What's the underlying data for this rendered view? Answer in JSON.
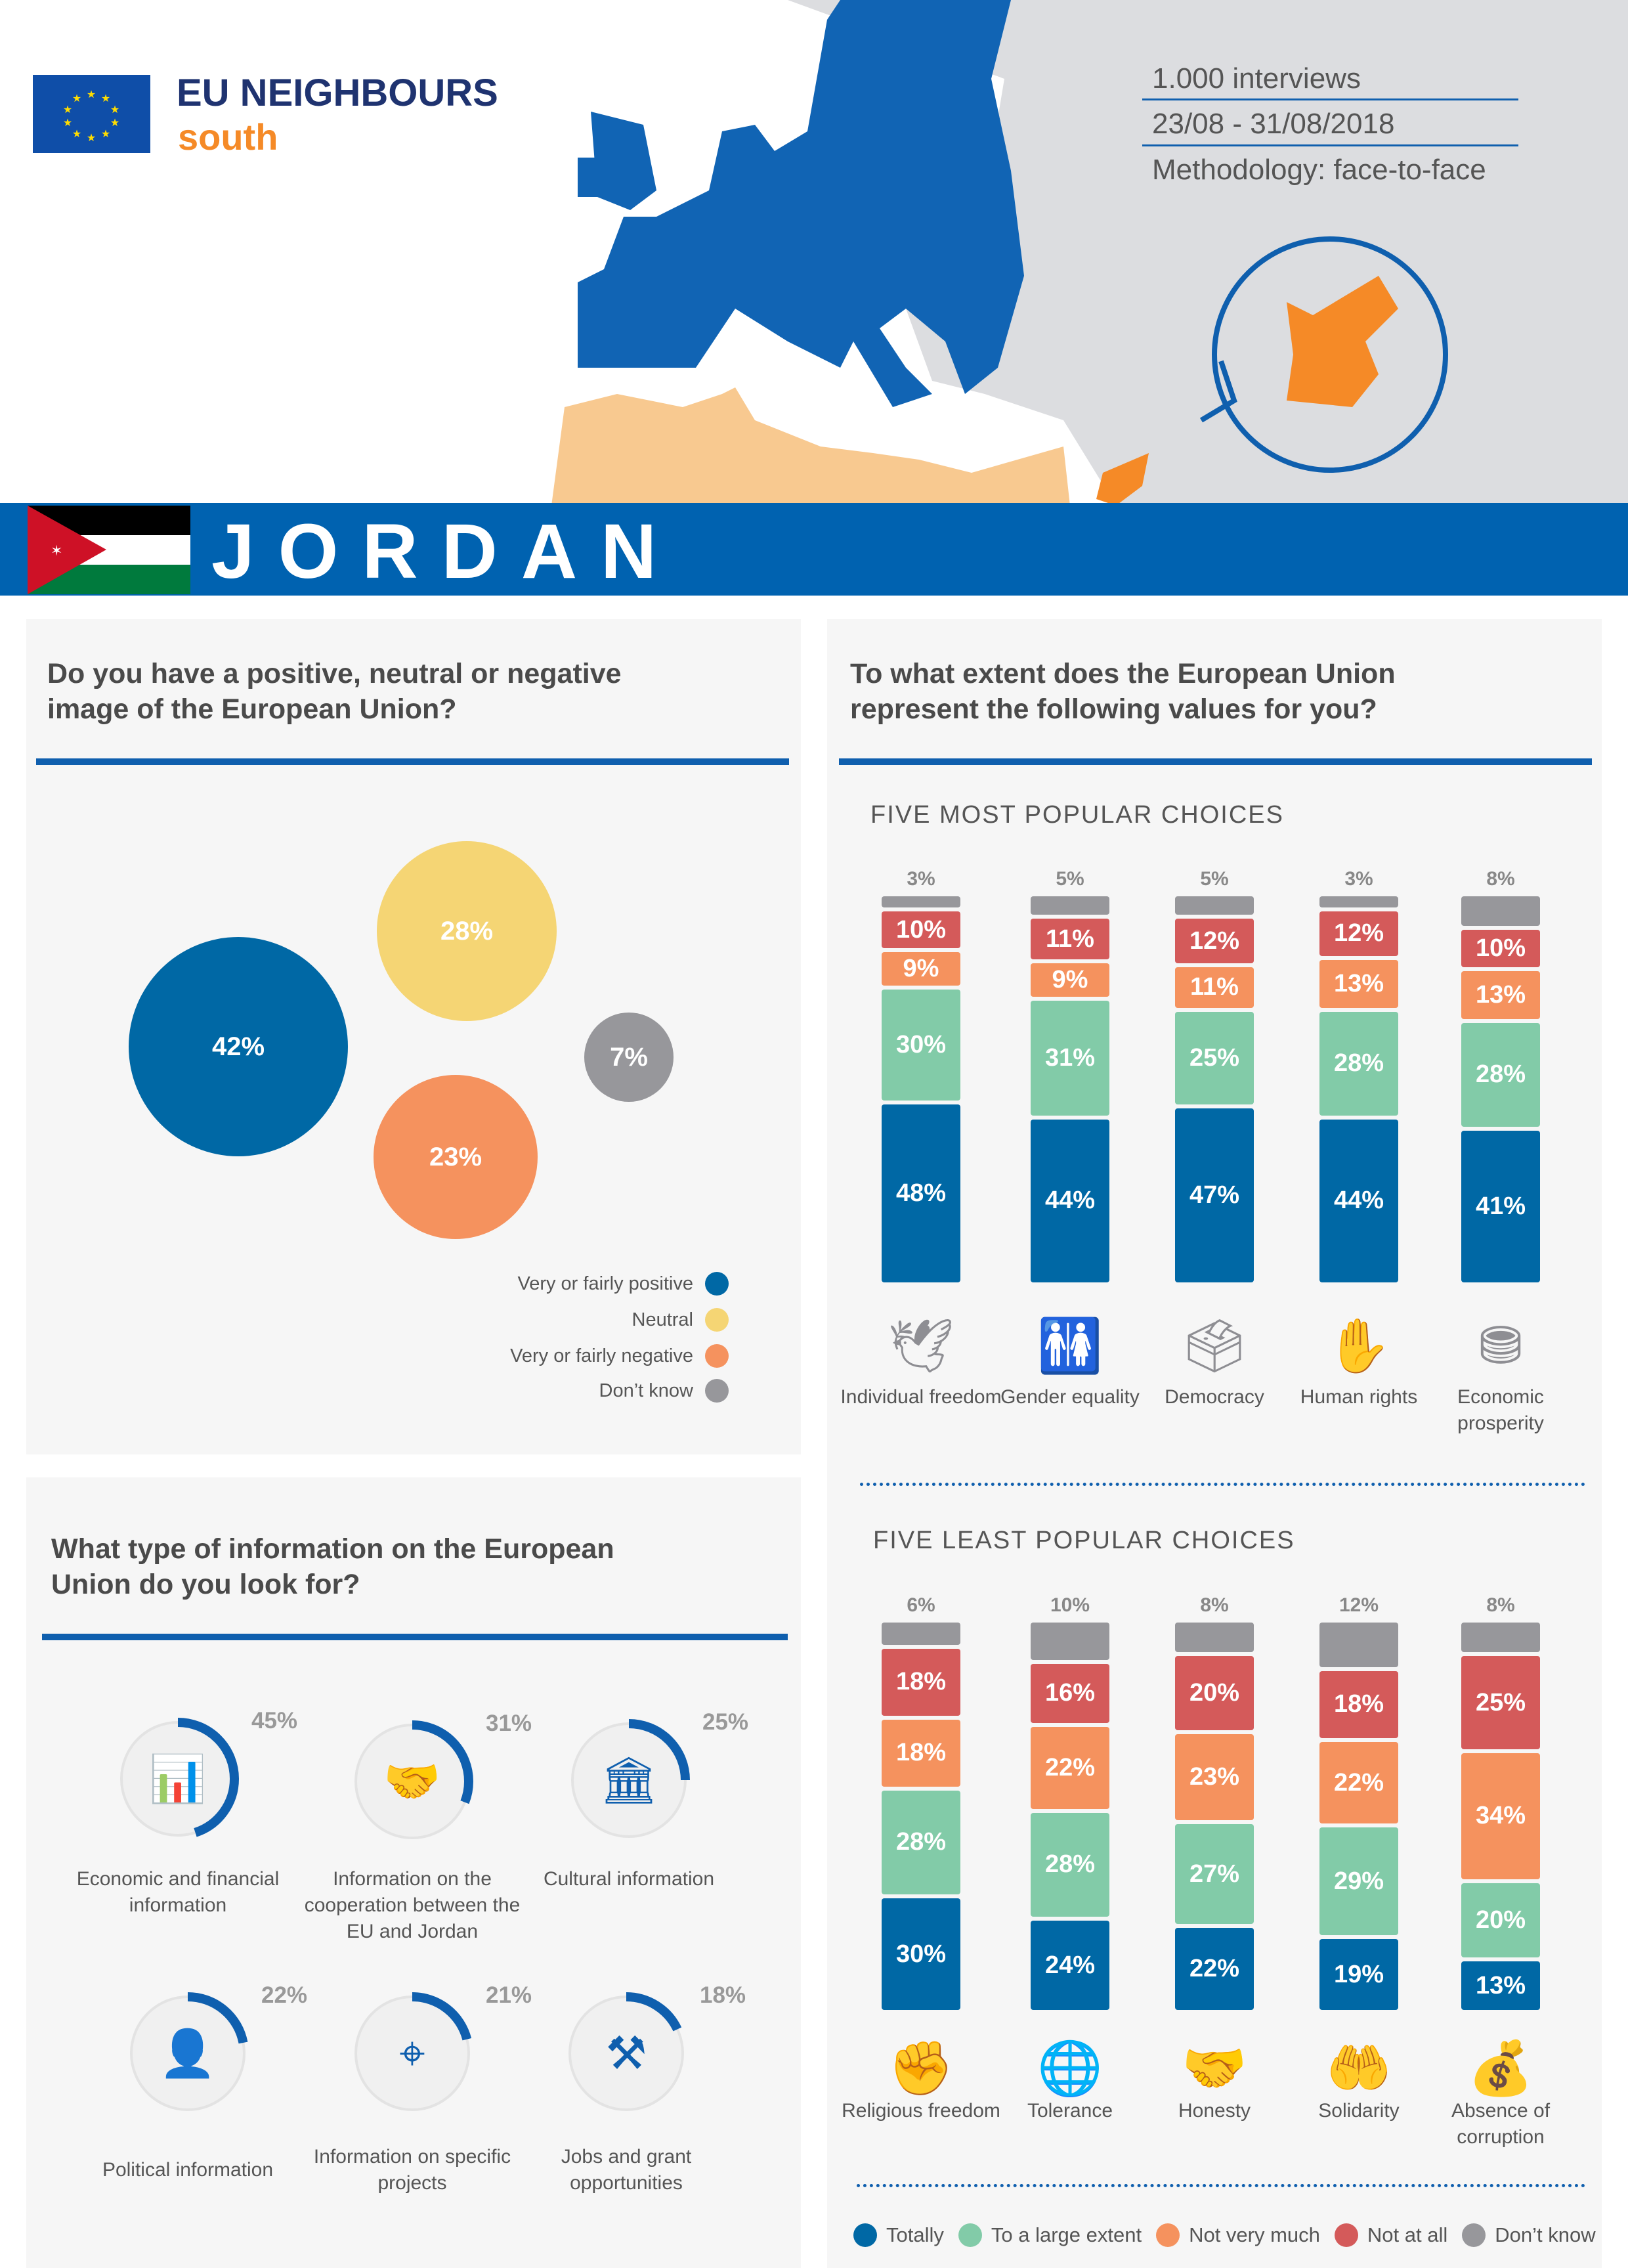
{
  "header": {
    "brand_line1": "EU NEIGHBOURS",
    "brand_line2": "south",
    "interviews": "1.000 interviews",
    "dates": "23/08 - 31/08/2018",
    "methodology": "Methodology: face-to-face",
    "country": "JORDAN"
  },
  "colors": {
    "eu_blue": "#0f5fae",
    "totally": "#0068a5",
    "large": "#82cba8",
    "not_very": "#f5925e",
    "not_at_all": "#d45a5a",
    "dont_know": "#97979b",
    "neutral": "#f5d574",
    "banner": "#0062b0",
    "orange": "#f58a27"
  },
  "image_question": {
    "title_line1": "Do you have a positive, neutral or negative",
    "title_line2": "image of the European Union?",
    "values": [
      {
        "label": "Very or fairly positive",
        "value": "42%"
      },
      {
        "label": "Neutral",
        "value": "28%"
      },
      {
        "label": "Very or fairly negative",
        "value": "23%"
      },
      {
        "label": "Don’t know",
        "value": "7%"
      }
    ]
  },
  "info_question": {
    "title_line1": "What type of information on the European",
    "title_line2": "Union do you look for?",
    "items": [
      {
        "label": "Economic and financial information",
        "value": 45,
        "pct": "45%",
        "icon": "chart-growth-icon"
      },
      {
        "label": "Information on the cooperation between the EU and Jordan",
        "value": 31,
        "pct": "31%",
        "icon": "handshake-icon"
      },
      {
        "label": "Cultural information",
        "value": 25,
        "pct": "25%",
        "icon": "museum-icon"
      },
      {
        "label": "Political information",
        "value": 22,
        "pct": "22%",
        "icon": "politician-icon"
      },
      {
        "label": "Information on specific projects",
        "value": 21,
        "pct": "21%",
        "icon": "target-icon"
      },
      {
        "label": "Jobs and grant opportunities",
        "value": 18,
        "pct": "18%",
        "icon": "tools-icon"
      }
    ]
  },
  "values_question": {
    "title_line1": "To what extent does the European Union",
    "title_line2": "represent the following values for you?"
  },
  "chart_data": [
    {
      "type": "bar",
      "stacked": true,
      "title": "FIVE MOST POPULAR CHOICES",
      "categories": [
        "Individual freedom",
        "Gender equality",
        "Democracy",
        "Human rights",
        "Economic prosperity"
      ],
      "icons": [
        "dove-icon",
        "man-woman-icon",
        "ballot-box-icon",
        "raised-hands-icon",
        "coins-icon"
      ],
      "series": [
        {
          "name": "Totally",
          "values": [
            48,
            44,
            47,
            44,
            41
          ]
        },
        {
          "name": "To a large extent",
          "values": [
            30,
            31,
            25,
            28,
            28
          ]
        },
        {
          "name": "Not very much",
          "values": [
            9,
            9,
            11,
            13,
            13
          ]
        },
        {
          "name": "Not at all",
          "values": [
            10,
            11,
            12,
            12,
            10
          ]
        },
        {
          "name": "Don’t know",
          "values": [
            3,
            5,
            5,
            3,
            8
          ]
        }
      ]
    },
    {
      "type": "bar",
      "stacked": true,
      "title": "FIVE LEAST POPULAR CHOICES",
      "categories": [
        "Religious freedom",
        "Tolerance",
        "Honesty",
        "Solidarity",
        "Absence of corruption"
      ],
      "icons": [
        "religion-hands-icon",
        "people-globe-icon",
        "handshake-icon",
        "helping-hands-icon",
        "bribe-icon"
      ],
      "series": [
        {
          "name": "Totally",
          "values": [
            30,
            24,
            22,
            19,
            13
          ]
        },
        {
          "name": "To a large extent",
          "values": [
            28,
            28,
            27,
            29,
            20
          ]
        },
        {
          "name": "Not very much",
          "values": [
            18,
            22,
            23,
            22,
            34
          ]
        },
        {
          "name": "Not at all",
          "values": [
            18,
            16,
            20,
            18,
            25
          ]
        },
        {
          "name": "Don’t know",
          "values": [
            6,
            10,
            8,
            12,
            8
          ]
        }
      ]
    }
  ],
  "legend": [
    "Totally",
    "To a large extent",
    "Not very much",
    "Not at all",
    "Don’t know"
  ]
}
